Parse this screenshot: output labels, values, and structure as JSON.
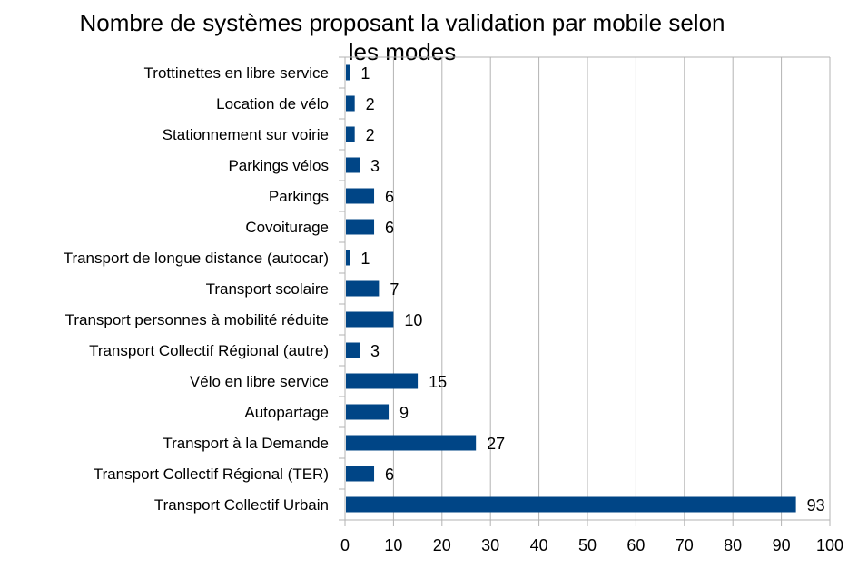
{
  "chart_data": {
    "type": "bar",
    "orientation": "horizontal",
    "title": "Nombre de systèmes proposant la validation par mobile selon les modes",
    "title_lines": [
      "Nombre de systèmes proposant la validation par mobile selon",
      "les modes"
    ],
    "xlabel": "",
    "ylabel": "",
    "xlim": [
      0,
      100
    ],
    "xticks": [
      0,
      10,
      20,
      30,
      40,
      50,
      60,
      70,
      80,
      90,
      100
    ],
    "grid": true,
    "legend": "none",
    "bar_color": "#004586",
    "categories": [
      "Trottinettes en libre service",
      "Location de vélo",
      "Stationnement sur voirie",
      "Parkings vélos",
      "Parkings",
      "Covoiturage",
      "Transport de longue distance (autocar)",
      "Transport scolaire",
      "Transport personnes à mobilité réduite",
      "Transport Collectif Régional (autre)",
      "Vélo en libre service",
      "Autopartage",
      "Transport à la Demande",
      "Transport Collectif Régional (TER)",
      "Transport Collectif Urbain"
    ],
    "values": [
      1,
      2,
      2,
      3,
      6,
      6,
      1,
      7,
      10,
      3,
      15,
      9,
      27,
      6,
      93
    ]
  }
}
